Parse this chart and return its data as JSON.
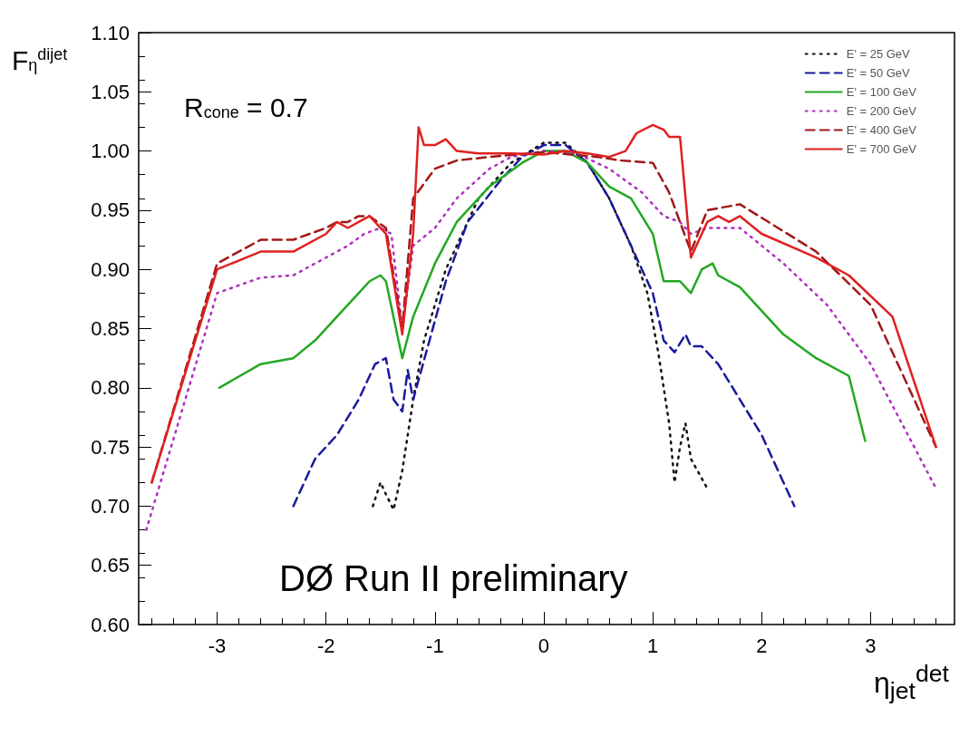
{
  "chart_data": {
    "type": "line",
    "xlabel": "η$_{jet}$$^{det}$",
    "ylabel": "F$_{η}$$^{dijet}$",
    "xlim": [
      -3.72,
      3.77
    ],
    "xticks": [
      -3,
      -2,
      -1,
      0,
      1,
      2,
      3
    ],
    "ylim": [
      0.6,
      1.1
    ],
    "yticks": [
      {
        "value": 0.6,
        "label": "0.60"
      },
      {
        "value": 0.65,
        "label": "0.65"
      },
      {
        "value": 0.7,
        "label": "0.70"
      },
      {
        "value": 0.75,
        "label": "0.75"
      },
      {
        "value": 0.8,
        "label": "0.80"
      },
      {
        "value": 0.85,
        "label": "0.85"
      },
      {
        "value": 0.9,
        "label": "0.90"
      },
      {
        "value": 0.95,
        "label": "0.95"
      },
      {
        "value": 1.0,
        "label": "1.00"
      },
      {
        "value": 1.05,
        "label": "1.05"
      },
      {
        "value": 1.1,
        "label": "1.10"
      }
    ],
    "grid": false,
    "legend": "top right",
    "marker": "none",
    "annotations": [
      "R$_{cone}$ = 0.7",
      "DØ Run II preliminary"
    ],
    "series": [
      {
        "name": "E' = 25 GeV",
        "color": "#111111",
        "line_style": "dotted",
        "x": [
          -1.57,
          -1.5,
          -1.45,
          -1.38,
          -1.3,
          -1.25,
          -1.2,
          -1.1,
          -0.9,
          -0.6,
          -0.3,
          0,
          0.2,
          0.4,
          0.6,
          0.8,
          0.95,
          1.05,
          1.15,
          1.2,
          1.25,
          1.3,
          1.35,
          1.5
        ],
        "values": [
          0.7,
          0.72,
          0.71,
          0.697,
          0.73,
          0.76,
          0.79,
          0.84,
          0.9,
          0.96,
          0.99,
          1.007,
          1.007,
          0.99,
          0.96,
          0.92,
          0.88,
          0.83,
          0.77,
          0.72,
          0.75,
          0.77,
          0.74,
          0.715
        ]
      },
      {
        "name": "E' = 50 GeV",
        "color": "#1a1a9c",
        "line_style": "dashed",
        "x": [
          -2.3,
          -2.1,
          -1.9,
          -1.7,
          -1.55,
          -1.45,
          -1.38,
          -1.3,
          -1.25,
          -1.2,
          -1.05,
          -0.9,
          -0.7,
          -0.4,
          -0.2,
          0,
          0.2,
          0.4,
          0.6,
          0.8,
          1.0,
          1.1,
          1.2,
          1.3,
          1.35,
          1.45,
          1.6,
          1.8,
          2.0,
          2.3
        ],
        "values": [
          0.7,
          0.74,
          0.76,
          0.79,
          0.82,
          0.825,
          0.79,
          0.78,
          0.815,
          0.79,
          0.84,
          0.89,
          0.94,
          0.975,
          0.995,
          1.005,
          1.005,
          0.99,
          0.96,
          0.92,
          0.88,
          0.84,
          0.83,
          0.845,
          0.835,
          0.835,
          0.82,
          0.79,
          0.76,
          0.7
        ]
      },
      {
        "name": "E' = 100 GeV",
        "color": "#22a822",
        "line_style": "solid",
        "x": [
          -2.98,
          -2.6,
          -2.3,
          -2.1,
          -1.9,
          -1.8,
          -1.7,
          -1.6,
          -1.5,
          -1.45,
          -1.3,
          -1.2,
          -1.0,
          -0.8,
          -0.5,
          -0.2,
          0,
          0.2,
          0.4,
          0.6,
          0.8,
          1.0,
          1.1,
          1.25,
          1.35,
          1.45,
          1.55,
          1.6,
          1.8,
          2.2,
          2.5,
          2.8,
          2.95
        ],
        "values": [
          0.8,
          0.82,
          0.825,
          0.84,
          0.86,
          0.87,
          0.88,
          0.89,
          0.895,
          0.89,
          0.825,
          0.86,
          0.905,
          0.94,
          0.97,
          0.99,
          1.0,
          1.0,
          0.99,
          0.97,
          0.96,
          0.93,
          0.89,
          0.89,
          0.88,
          0.9,
          0.905,
          0.895,
          0.885,
          0.845,
          0.825,
          0.81,
          0.755
        ]
      },
      {
        "name": "E' = 200 GeV",
        "color": "#b030c0",
        "line_style": "dotted",
        "x": [
          -3.65,
          -3.0,
          -2.6,
          -2.3,
          -2.0,
          -1.8,
          -1.65,
          -1.5,
          -1.4,
          -1.3,
          -1.2,
          -1.0,
          -0.8,
          -0.5,
          -0.3,
          0,
          0.3,
          0.6,
          0.9,
          1.1,
          1.25,
          1.35,
          1.5,
          1.8,
          2.2,
          2.6,
          3.0,
          3.6
        ],
        "values": [
          0.68,
          0.88,
          0.893,
          0.895,
          0.91,
          0.92,
          0.93,
          0.935,
          0.93,
          0.85,
          0.92,
          0.935,
          0.96,
          0.985,
          0.995,
          1.0,
          0.998,
          0.985,
          0.965,
          0.945,
          0.94,
          0.93,
          0.935,
          0.935,
          0.905,
          0.87,
          0.82,
          0.715
        ]
      },
      {
        "name": "E' = 400 GeV",
        "color": "#a01818",
        "line_style": "dashed",
        "x": [
          -3.6,
          -3.0,
          -2.6,
          -2.3,
          -2.0,
          -1.9,
          -1.8,
          -1.7,
          -1.6,
          -1.45,
          -1.3,
          -1.2,
          -1.0,
          -0.8,
          -0.5,
          0,
          0.5,
          0.7,
          1.0,
          1.15,
          1.35,
          1.5,
          1.8,
          2.5,
          3.0,
          3.6
        ],
        "values": [
          0.72,
          0.905,
          0.925,
          0.925,
          0.935,
          0.94,
          0.94,
          0.945,
          0.945,
          0.935,
          0.85,
          0.96,
          0.985,
          0.992,
          0.995,
          0.999,
          0.995,
          0.992,
          0.99,
          0.965,
          0.915,
          0.95,
          0.955,
          0.915,
          0.87,
          0.75
        ]
      },
      {
        "name": "E' = 700 GeV",
        "color": "#e02020",
        "line_style": "solid",
        "x": [
          -3.6,
          -3.0,
          -2.6,
          -2.3,
          -2.0,
          -1.9,
          -1.8,
          -1.7,
          -1.6,
          -1.55,
          -1.45,
          -1.3,
          -1.2,
          -1.15,
          -1.1,
          -1.0,
          -0.9,
          -0.8,
          -0.6,
          -0.3,
          0,
          0.2,
          0.4,
          0.6,
          0.75,
          0.85,
          1.0,
          1.1,
          1.15,
          1.25,
          1.35,
          1.5,
          1.6,
          1.7,
          1.8,
          2.0,
          2.5,
          2.8,
          3.2,
          3.6
        ],
        "values": [
          0.72,
          0.9,
          0.915,
          0.915,
          0.93,
          0.94,
          0.935,
          0.94,
          0.945,
          0.94,
          0.93,
          0.845,
          0.93,
          1.02,
          1.005,
          1.005,
          1.01,
          1.0,
          0.998,
          0.998,
          0.997,
          1.0,
          0.998,
          0.995,
          1.0,
          1.015,
          1.022,
          1.018,
          1.012,
          1.012,
          0.91,
          0.94,
          0.945,
          0.94,
          0.945,
          0.93,
          0.91,
          0.895,
          0.86,
          0.75
        ]
      }
    ]
  }
}
